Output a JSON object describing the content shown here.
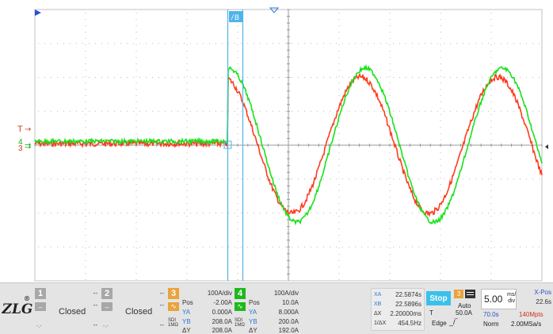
{
  "app": {
    "logo_text": "ZLG",
    "logo_mark": "®"
  },
  "markers": {
    "trigger_level": "T",
    "ch4_marker": "4",
    "ch3_marker": "3",
    "cursor_b_label": "B"
  },
  "colors": {
    "ch3": "#ff3b1f",
    "ch4": "#18e21a",
    "cursor": "#4fb4ea",
    "trigger": "#d04020",
    "grid": "#b9b9b9"
  },
  "channels": [
    {
      "num": "1",
      "scale": "--",
      "pos": "--",
      "state": "Closed",
      "foot": "--"
    },
    {
      "num": "2",
      "scale": "--",
      "pos": "--",
      "state": "Closed",
      "foot": "--"
    }
  ],
  "ch3": {
    "num": "3",
    "scale": "100A/div",
    "pos_label": "Pos",
    "pos": "-2.00A",
    "ya_label": "YA",
    "ya": "0.000A",
    "yb_label": "YB",
    "yb": "208.0A",
    "dy_label": "ΔY",
    "dy": "208.0A",
    "coupling": "SDI 1MΩ"
  },
  "ch4": {
    "num": "4",
    "scale": "100A/div",
    "pos_label": "Pos",
    "pos": "10.0A",
    "ya_label": "YA",
    "ya": "8.000A",
    "yb_label": "YB",
    "yb": "200.0A",
    "dy_label": "ΔY",
    "dy": "192.0A",
    "coupling": "SDI 1MΩ"
  },
  "cursor": {
    "xa_label": "XA",
    "xa": "22.5874s",
    "xb_label": "XB",
    "xb": "22.5896s",
    "dx_label": "ΔX",
    "dx": "2.20000ms",
    "inv_label": "1/ΔX",
    "inv": "454.5Hz"
  },
  "run": {
    "state": "Stop"
  },
  "trigger": {
    "source": "3",
    "mode": "Auto",
    "t_label": "T",
    "level": "50.0A",
    "type": "Edge"
  },
  "timebase": {
    "value": "5.00",
    "unit_top": "ms/",
    "unit_bottom": "div",
    "xpos_label": "X-Pos",
    "xpos": "22.6s"
  },
  "acq": {
    "time": "70.0s",
    "depth": "140Mpts",
    "mode": "Norm",
    "rate": "2.00MSa/s"
  }
}
